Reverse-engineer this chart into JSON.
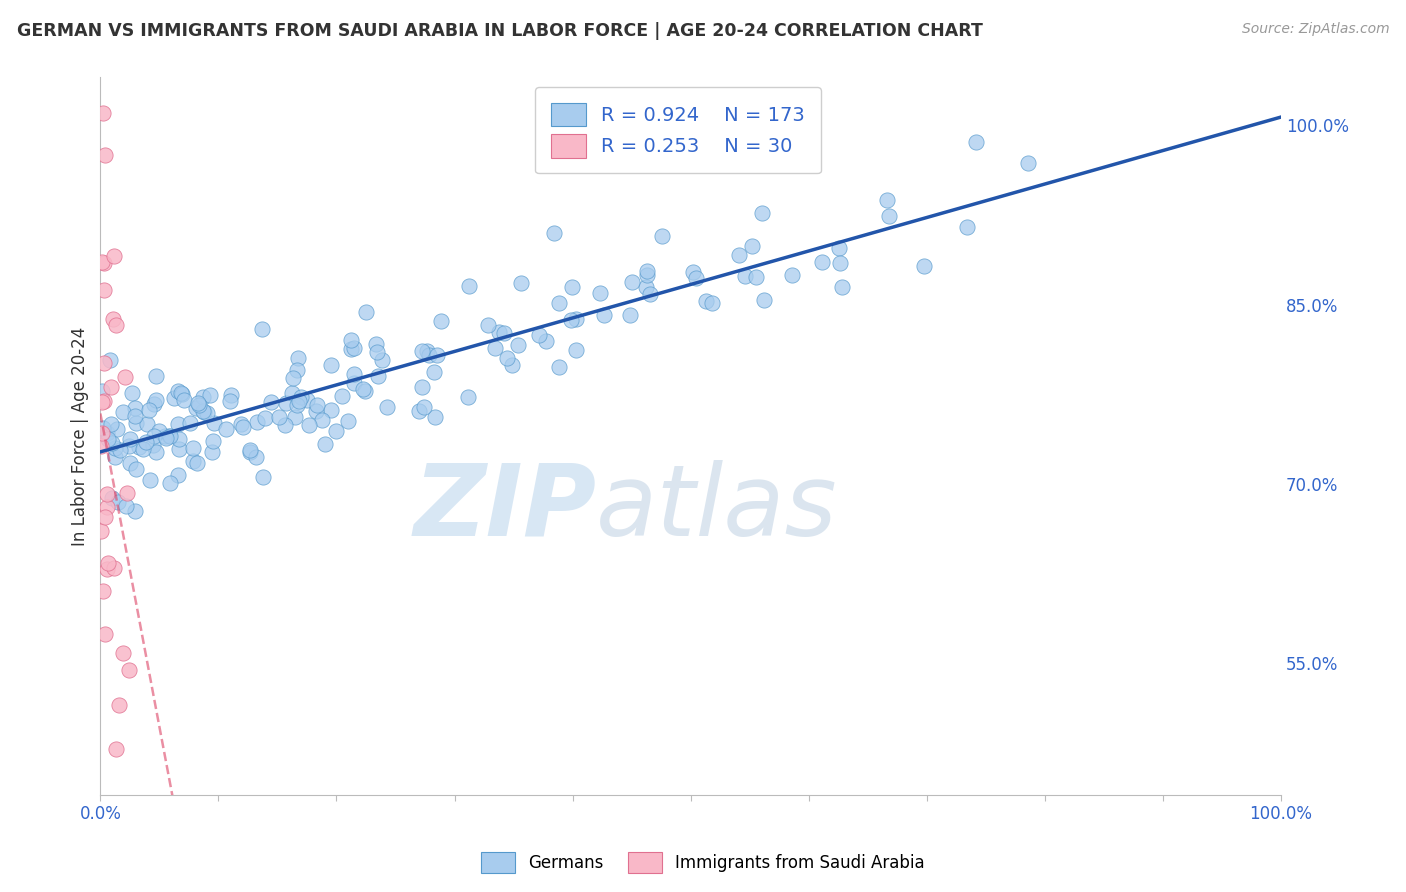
{
  "title": "GERMAN VS IMMIGRANTS FROM SAUDI ARABIA IN LABOR FORCE | AGE 20-24 CORRELATION CHART",
  "source": "Source: ZipAtlas.com",
  "ylabel": "In Labor Force | Age 20-24",
  "ylabel_right_ticks": [
    "100.0%",
    "85.0%",
    "70.0%",
    "55.0%"
  ],
  "ylabel_right_values": [
    1.0,
    0.85,
    0.7,
    0.55
  ],
  "legend_german_R": 0.924,
  "legend_german_N": 173,
  "legend_saudi_R": 0.253,
  "legend_saudi_N": 30,
  "blue_scatter_face": "#a8ccee",
  "blue_scatter_edge": "#5599cc",
  "pink_scatter_face": "#f9b8c8",
  "pink_scatter_edge": "#e07090",
  "blue_line_color": "#2255aa",
  "pink_line_color": "#dd4466",
  "background": "#ffffff",
  "grid_color": "#dddddd",
  "title_color": "#333333",
  "axis_label_color": "#3366cc",
  "r_label_color": "#333333",
  "r_value_color": "#3366cc",
  "xmin": 0.0,
  "xmax": 1.0,
  "ymin": 0.44,
  "ymax": 1.04
}
